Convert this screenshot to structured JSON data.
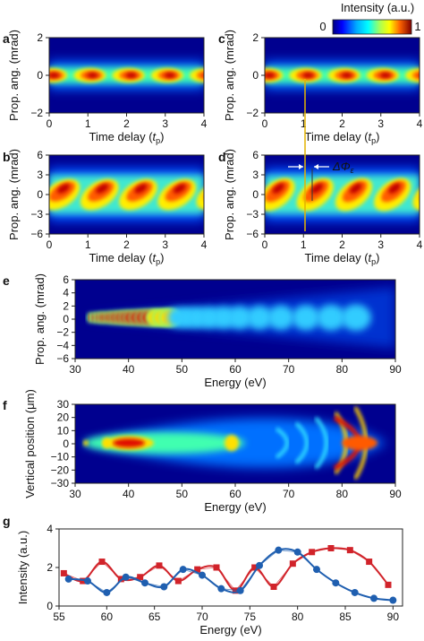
{
  "colorbar": {
    "label": "Intensity (a.u.)",
    "min_label": "0",
    "max_label": "1",
    "colors": [
      "#00007f",
      "#0000ff",
      "#007fff",
      "#00ffff",
      "#7fff7f",
      "#ffff00",
      "#ff7f00",
      "#ff0000",
      "#7f0000"
    ]
  },
  "panels": [
    {
      "id": "a",
      "label": "a",
      "type": "heatmap",
      "xlabel_pre": "Time delay (",
      "xlabel_sym": "t",
      "xlabel_sub": "p",
      "xlabel_post": ")",
      "ylabel": "Prop. ang. (mrad)",
      "xlim": [
        0,
        4
      ],
      "ylim": [
        -2,
        2
      ],
      "xticks": [
        "0",
        "1",
        "2",
        "3",
        "4"
      ],
      "yticks": [
        "2",
        "0",
        "−2"
      ]
    },
    {
      "id": "b",
      "label": "b",
      "type": "heatmap",
      "xlabel_pre": "Time delay (",
      "xlabel_sym": "t",
      "xlabel_sub": "p",
      "xlabel_post": ")",
      "ylabel": "Prop. ang. (mrad)",
      "xlim": [
        0,
        4
      ],
      "ylim": [
        -6,
        6
      ],
      "xticks": [
        "0",
        "1",
        "2",
        "3",
        "4"
      ],
      "yticks": [
        "6",
        "3",
        "0",
        "−3",
        "−6"
      ]
    },
    {
      "id": "c",
      "label": "c",
      "type": "heatmap",
      "xlabel_pre": "Time delay (",
      "xlabel_sym": "t",
      "xlabel_sub": "p",
      "xlabel_post": ")",
      "ylabel": "Prop. ang. (mrad)",
      "xlim": [
        0,
        4
      ],
      "ylim": [
        -2,
        2
      ],
      "xticks": [
        "0",
        "1",
        "2",
        "3",
        "4"
      ],
      "yticks": [
        "2",
        "0",
        "−2"
      ]
    },
    {
      "id": "d",
      "label": "d",
      "type": "heatmap",
      "xlabel_pre": "Time delay (",
      "xlabel_sym": "t",
      "xlabel_sub": "p",
      "xlabel_post": ")",
      "ylabel": "Prop. ang. (mrad)",
      "xlim": [
        0,
        4
      ],
      "ylim": [
        -6,
        6
      ],
      "xticks": [
        "0",
        "1",
        "2",
        "3",
        "4"
      ],
      "yticks": [
        "6",
        "3",
        "0",
        "−3",
        "−6"
      ],
      "annotation": "ΔΦ",
      "annotation_sub": "ε"
    },
    {
      "id": "e",
      "label": "e",
      "type": "heatmap",
      "xlabel": "Energy (eV)",
      "ylabel": "Prop. ang. (mrad)",
      "xlim": [
        30,
        90
      ],
      "ylim": [
        -6,
        6
      ],
      "xticks": [
        "30",
        "40",
        "50",
        "60",
        "70",
        "80",
        "90"
      ],
      "yticks": [
        "6",
        "4",
        "2",
        "0",
        "−2",
        "−4",
        "−6"
      ]
    },
    {
      "id": "f",
      "label": "f",
      "type": "heatmap",
      "xlabel": "Energy (eV)",
      "ylabel": "Vertical position (μm)",
      "xlim": [
        30,
        90
      ],
      "ylim": [
        -30,
        30
      ],
      "xticks": [
        "30",
        "40",
        "50",
        "60",
        "70",
        "80",
        "90"
      ],
      "yticks": [
        "30",
        "20",
        "10",
        "0",
        "−10",
        "−20",
        "−30"
      ]
    }
  ],
  "chart_data": {
    "type": "line",
    "label": "g",
    "xlabel": "Energy (eV)",
    "ylabel": "Intensity (a.u.)",
    "xlim": [
      55,
      91
    ],
    "ylim": [
      0,
      4
    ],
    "xticks": [
      "55",
      "60",
      "65",
      "70",
      "75",
      "80",
      "85",
      "90"
    ],
    "yticks": [
      "0",
      "2",
      "4"
    ],
    "series": [
      {
        "color": "#d1232a",
        "marker": "square",
        "x": [
          55.5,
          57.5,
          59.5,
          61.5,
          63.5,
          65.5,
          67.5,
          69.5,
          71.5,
          73.5,
          75.5,
          77.5,
          79.5,
          81.5,
          83.5,
          85.5,
          87.5,
          89.5
        ],
        "values": [
          1.7,
          1.3,
          2.3,
          1.4,
          1.5,
          2.1,
          1.3,
          1.9,
          2.0,
          0.8,
          2.0,
          1.0,
          2.2,
          2.8,
          3.0,
          2.9,
          2.3,
          1.1
        ]
      },
      {
        "color": "#1f5fb0",
        "marker": "circle",
        "x": [
          56,
          58,
          60,
          62,
          64,
          66,
          68,
          70,
          72,
          74,
          76,
          78,
          80,
          82,
          84,
          86,
          88,
          90
        ],
        "values": [
          1.4,
          1.3,
          0.7,
          1.5,
          1.2,
          1.0,
          1.9,
          1.6,
          0.9,
          0.8,
          2.1,
          2.9,
          2.8,
          1.9,
          1.2,
          0.7,
          0.4,
          0.3
        ]
      }
    ]
  }
}
